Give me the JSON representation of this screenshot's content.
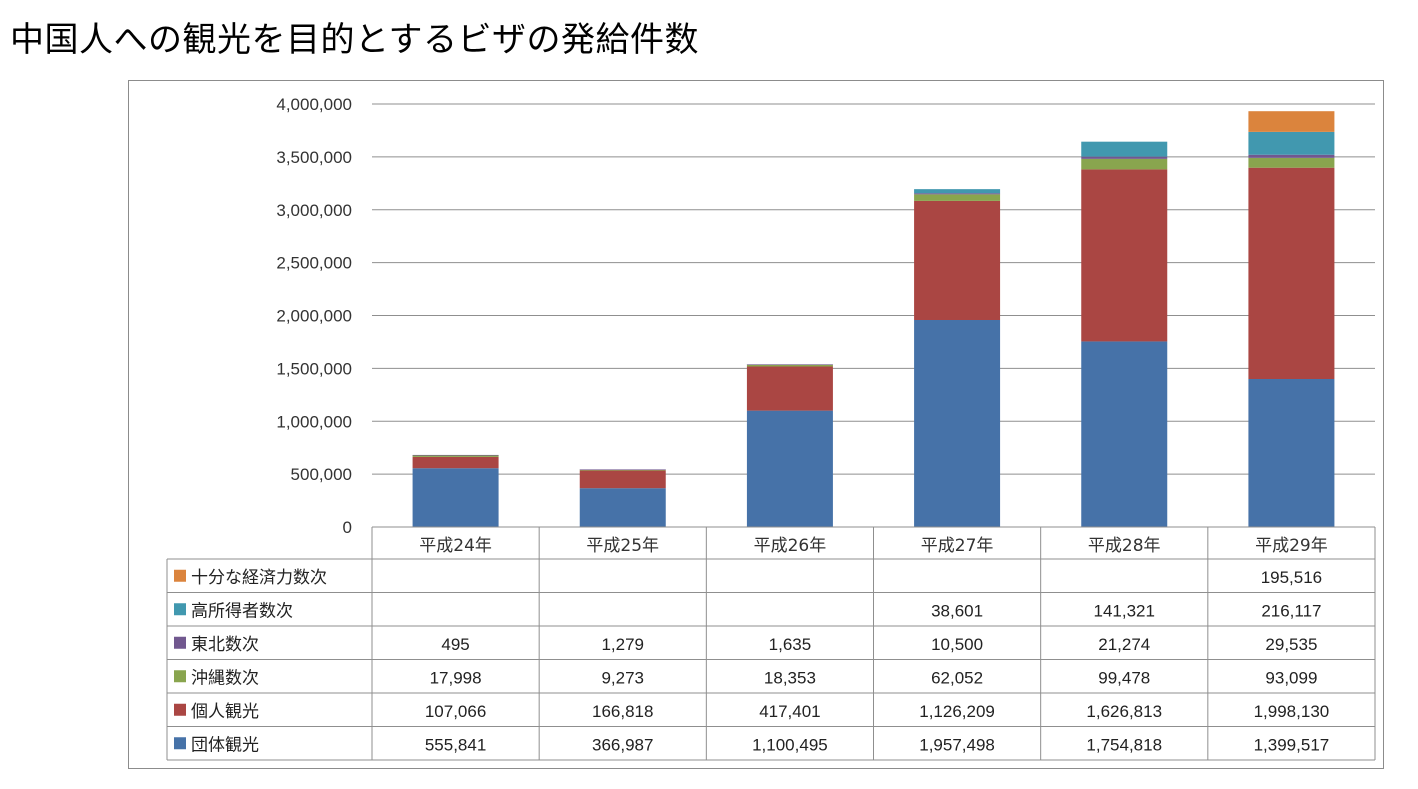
{
  "page": {
    "title": "中国人への観光を目的とするビザの発給件数"
  },
  "chart_data": {
    "type": "bar",
    "stacked": true,
    "categories": [
      "平成24年",
      "平成25年",
      "平成26年",
      "平成27年",
      "平成28年",
      "平成29年"
    ],
    "ylim": [
      0,
      4000000
    ],
    "yticks": [
      0,
      500000,
      1000000,
      1500000,
      2000000,
      2500000,
      3000000,
      3500000,
      4000000
    ],
    "ytick_labels": [
      "0",
      "500,000",
      "1,000,000",
      "1,500,000",
      "2,000,000",
      "2,500,000",
      "3,000,000",
      "3,500,000",
      "4,000,000"
    ],
    "grid": true,
    "legend_placement": "data-table-left",
    "series": [
      {
        "name": "団体観光",
        "color": "#4672a8",
        "values": [
          555841,
          366987,
          1100495,
          1957498,
          1754818,
          1399517
        ],
        "labels": [
          "555,841",
          "366,987",
          "1,100,495",
          "1,957,498",
          "1,754,818",
          "1,399,517"
        ]
      },
      {
        "name": "個人観光",
        "color": "#aa4643",
        "values": [
          107066,
          166818,
          417401,
          1126209,
          1626813,
          1998130
        ],
        "labels": [
          "107,066",
          "166,818",
          "417,401",
          "1,126,209",
          "1,626,813",
          "1,998,130"
        ]
      },
      {
        "name": "沖縄数次",
        "color": "#89a54e",
        "values": [
          17998,
          9273,
          18353,
          62052,
          99478,
          93099
        ],
        "labels": [
          "17,998",
          "9,273",
          "18,353",
          "62,052",
          "99,478",
          "93,099"
        ]
      },
      {
        "name": "東北数次",
        "color": "#71588f",
        "values": [
          495,
          1279,
          1635,
          10500,
          21274,
          29535
        ],
        "labels": [
          "495",
          "1,279",
          "1,635",
          "10,500",
          "21,274",
          "29,535"
        ]
      },
      {
        "name": "高所得者数次",
        "color": "#4198af",
        "values": [
          null,
          null,
          null,
          38601,
          141321,
          216117
        ],
        "labels": [
          "",
          "",
          "",
          "38,601",
          "141,321",
          "216,117"
        ]
      },
      {
        "name": "十分な経済力数次",
        "color": "#db843d",
        "values": [
          null,
          null,
          null,
          null,
          null,
          195516
        ],
        "labels": [
          "",
          "",
          "",
          "",
          "",
          "195,516"
        ]
      }
    ]
  }
}
